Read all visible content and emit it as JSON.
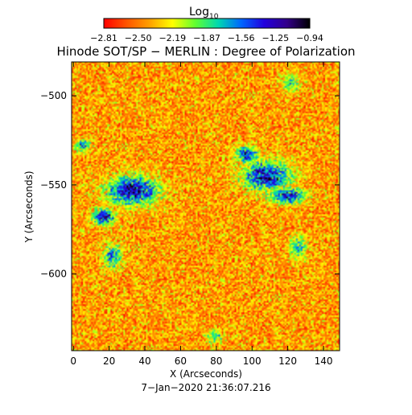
{
  "chart_data": {
    "type": "heatmap",
    "title": "Hinode SOT/SP − MERLIN : Degree of Polarization",
    "xlabel": "X (Arcseconds)",
    "ylabel": "Y (Arcseconds)",
    "timestamp": "7−Jan−2020 21:36:07.216",
    "colorbar": {
      "label_main": "Log",
      "label_sub": "10",
      "tick_labels": [
        "−2.81",
        "−2.50",
        "−2.19",
        "−1.87",
        "−1.56",
        "−1.25",
        "−0.94"
      ],
      "range": [
        -2.81,
        -0.94
      ],
      "colormap": [
        "#ff0000",
        "#ff5500",
        "#ffa000",
        "#ffff00",
        "#60ff30",
        "#00d8b0",
        "#0066ff",
        "#2200dd",
        "#33008a",
        "#000000"
      ]
    },
    "xlim": [
      -1,
      149
    ],
    "ylim": [
      -643,
      -481
    ],
    "xticks": [
      0,
      20,
      40,
      60,
      80,
      100,
      120,
      140
    ],
    "xtick_labels": [
      "0",
      "20",
      "40",
      "60",
      "80",
      "100",
      "120",
      "140"
    ],
    "yticks": [
      -600,
      -550,
      -500
    ],
    "ytick_labels": [
      "−600",
      "−550",
      "−500"
    ],
    "background_level": -2.4,
    "features": [
      {
        "name": "left cluster",
        "x": 33,
        "y": -553,
        "rx": 16,
        "ry": 9,
        "peak": -1.0
      },
      {
        "name": "left cluster tail",
        "x": 17,
        "y": -568,
        "rx": 7,
        "ry": 5,
        "peak": -1.05
      },
      {
        "name": "left cluster spur",
        "x": 22,
        "y": -590,
        "rx": 6,
        "ry": 8,
        "peak": -1.5
      },
      {
        "name": "right cluster",
        "x": 108,
        "y": -545,
        "rx": 15,
        "ry": 9,
        "peak": -1.05
      },
      {
        "name": "right cluster extension",
        "x": 120,
        "y": -556,
        "rx": 11,
        "ry": 5,
        "peak": -1.15
      },
      {
        "name": "right cluster north",
        "x": 97,
        "y": -533,
        "rx": 7,
        "ry": 5,
        "peak": -1.2
      },
      {
        "name": "right cluster south",
        "x": 126,
        "y": -585,
        "rx": 5,
        "ry": 7,
        "peak": -1.6
      },
      {
        "name": "north plage",
        "x": 122,
        "y": -493,
        "rx": 6,
        "ry": 5,
        "peak": -1.7
      },
      {
        "name": "left edge patch",
        "x": 5,
        "y": -528,
        "rx": 5,
        "ry": 4,
        "peak": -1.5
      },
      {
        "name": "bottom patch",
        "x": 79,
        "y": -635,
        "rx": 5,
        "ry": 4,
        "peak": -1.7
      }
    ]
  }
}
